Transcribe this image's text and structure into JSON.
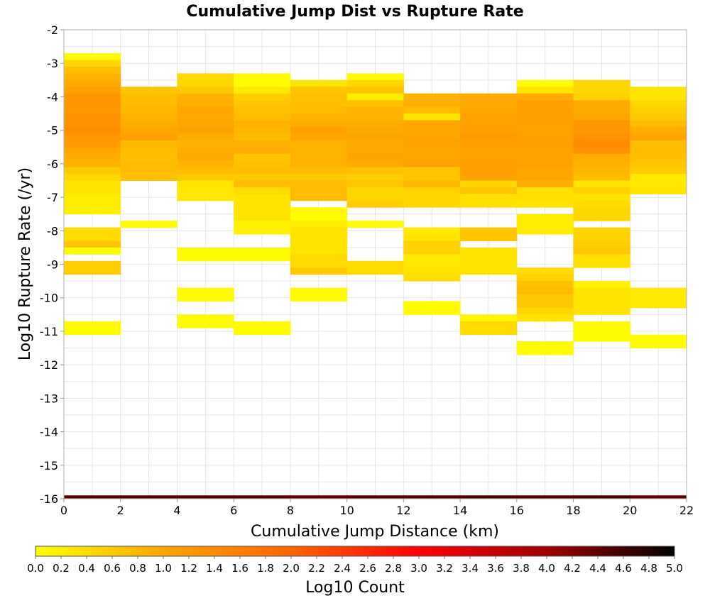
{
  "chart_data": {
    "type": "heatmap",
    "title": "Cumulative Jump Dist vs Rupture Rate",
    "xlabel": "Cumulative Jump Distance (km)",
    "ylabel": "Log10 Rupture Rate (/yr)",
    "xlim": [
      0,
      22
    ],
    "ylim": [
      -16,
      -2
    ],
    "x_bin_width": 2,
    "y_bin_height": 0.2,
    "x_ticks": [
      "0",
      "2",
      "4",
      "6",
      "8",
      "10",
      "12",
      "14",
      "16",
      "18",
      "20",
      "22"
    ],
    "y_ticks": [
      "-2",
      "-3",
      "-4",
      "-5",
      "-6",
      "-7",
      "-8",
      "-9",
      "-10",
      "-11",
      "-12",
      "-13",
      "-14",
      "-15",
      "-16"
    ],
    "colorbar": {
      "label": "Log10 Count",
      "range": [
        0,
        5
      ],
      "ticks": [
        "0.0",
        "0.2",
        "0.4",
        "0.6",
        "0.8",
        "1.0",
        "1.2",
        "1.4",
        "1.6",
        "1.8",
        "2.0",
        "2.2",
        "2.4",
        "2.6",
        "2.8",
        "3.0",
        "3.2",
        "3.4",
        "3.6",
        "3.8",
        "4.0",
        "4.2",
        "4.4",
        "4.6",
        "4.8",
        "5.0"
      ],
      "colormap": "hot_reversed",
      "stops": [
        "#ffff00",
        "#ffa500",
        "#ff6400",
        "#ff0000",
        "#a00000",
        "#000000"
      ]
    },
    "grid": true,
    "columns": [
      {
        "x": 0,
        "cells": [
          [
            -2.8,
            0.05
          ],
          [
            -3.0,
            0.45
          ],
          [
            -3.2,
            0.7
          ],
          [
            -3.4,
            0.85
          ],
          [
            -3.6,
            0.95
          ],
          [
            -3.8,
            1.05
          ],
          [
            -4.0,
            1.25
          ],
          [
            -4.2,
            1.25
          ],
          [
            -4.4,
            1.2
          ],
          [
            -4.6,
            1.3
          ],
          [
            -4.8,
            1.3
          ],
          [
            -5.0,
            1.35
          ],
          [
            -5.2,
            1.2
          ],
          [
            -5.4,
            1.15
          ],
          [
            -5.6,
            1.0
          ],
          [
            -5.8,
            0.9
          ],
          [
            -6.0,
            0.85
          ],
          [
            -6.2,
            0.6
          ],
          [
            -6.4,
            0.45
          ],
          [
            -6.6,
            0.3
          ],
          [
            -6.8,
            0.3
          ],
          [
            -7.0,
            0.2
          ],
          [
            -7.2,
            0.2
          ],
          [
            -7.4,
            0.2
          ],
          [
            -8.0,
            0.4
          ],
          [
            -8.2,
            0.4
          ],
          [
            -8.4,
            0.65
          ],
          [
            -8.6,
            0.05
          ],
          [
            -9.0,
            0.55
          ],
          [
            -9.2,
            0.55
          ],
          [
            -10.8,
            0.05
          ],
          [
            -11.0,
            0.05
          ]
        ]
      },
      {
        "x": 2,
        "cells": [
          [
            -3.8,
            0.65
          ],
          [
            -4.0,
            0.75
          ],
          [
            -4.2,
            0.75
          ],
          [
            -4.4,
            0.8
          ],
          [
            -4.6,
            0.85
          ],
          [
            -4.8,
            0.9
          ],
          [
            -5.0,
            1.0
          ],
          [
            -5.2,
            1.1
          ],
          [
            -5.4,
            0.8
          ],
          [
            -5.6,
            0.75
          ],
          [
            -5.8,
            0.7
          ],
          [
            -6.0,
            0.75
          ],
          [
            -6.2,
            0.75
          ],
          [
            -6.4,
            0.7
          ],
          [
            -7.8,
            0.05
          ]
        ]
      },
      {
        "x": 4,
        "cells": [
          [
            -3.4,
            0.4
          ],
          [
            -3.6,
            0.45
          ],
          [
            -3.8,
            0.6
          ],
          [
            -4.0,
            0.85
          ],
          [
            -4.2,
            0.9
          ],
          [
            -4.4,
            1.0
          ],
          [
            -4.6,
            0.95
          ],
          [
            -4.8,
            1.0
          ],
          [
            -5.0,
            1.05
          ],
          [
            -5.2,
            0.9
          ],
          [
            -5.4,
            0.85
          ],
          [
            -5.6,
            0.9
          ],
          [
            -5.8,
            0.95
          ],
          [
            -6.0,
            0.85
          ],
          [
            -6.2,
            0.75
          ],
          [
            -6.4,
            0.6
          ],
          [
            -6.6,
            0.3
          ],
          [
            -6.8,
            0.25
          ],
          [
            -7.0,
            0.25
          ],
          [
            -8.6,
            0.05
          ],
          [
            -8.8,
            0.05
          ],
          [
            -9.8,
            0.05
          ],
          [
            -10.0,
            0.05
          ],
          [
            -10.6,
            0.05
          ],
          [
            -10.8,
            0.05
          ]
        ]
      },
      {
        "x": 6,
        "cells": [
          [
            -3.4,
            0.05
          ],
          [
            -3.6,
            0.05
          ],
          [
            -3.8,
            0.25
          ],
          [
            -4.0,
            0.55
          ],
          [
            -4.2,
            0.65
          ],
          [
            -4.4,
            0.7
          ],
          [
            -4.6,
            0.75
          ],
          [
            -4.8,
            0.85
          ],
          [
            -5.0,
            0.8
          ],
          [
            -5.2,
            0.75
          ],
          [
            -5.4,
            0.85
          ],
          [
            -5.6,
            0.9
          ],
          [
            -5.8,
            0.65
          ],
          [
            -6.0,
            0.7
          ],
          [
            -6.2,
            0.75
          ],
          [
            -6.4,
            0.6
          ],
          [
            -6.6,
            0.75
          ],
          [
            -6.8,
            0.4
          ],
          [
            -7.0,
            0.3
          ],
          [
            -7.2,
            0.3
          ],
          [
            -7.4,
            0.3
          ],
          [
            -7.6,
            0.3
          ],
          [
            -7.8,
            0.15
          ],
          [
            -8.0,
            0.15
          ],
          [
            -8.6,
            0.05
          ],
          [
            -8.8,
            0.05
          ],
          [
            -10.8,
            0.05
          ],
          [
            -11.0,
            0.05
          ]
        ]
      },
      {
        "x": 8,
        "cells": [
          [
            -3.6,
            0.3
          ],
          [
            -3.8,
            0.65
          ],
          [
            -4.0,
            0.7
          ],
          [
            -4.2,
            0.7
          ],
          [
            -4.4,
            0.75
          ],
          [
            -4.6,
            0.85
          ],
          [
            -4.8,
            0.9
          ],
          [
            -5.0,
            1.1
          ],
          [
            -5.2,
            1.0
          ],
          [
            -5.4,
            0.85
          ],
          [
            -5.6,
            0.85
          ],
          [
            -5.8,
            0.85
          ],
          [
            -6.0,
            0.85
          ],
          [
            -6.2,
            0.75
          ],
          [
            -6.4,
            0.6
          ],
          [
            -6.6,
            0.75
          ],
          [
            -6.8,
            0.75
          ],
          [
            -7.0,
            0.75
          ],
          [
            -7.4,
            0.05
          ],
          [
            -7.6,
            0.05
          ],
          [
            -7.8,
            0.2
          ],
          [
            -8.0,
            0.3
          ],
          [
            -8.2,
            0.3
          ],
          [
            -8.4,
            0.3
          ],
          [
            -8.6,
            0.3
          ],
          [
            -8.8,
            0.4
          ],
          [
            -9.0,
            0.4
          ],
          [
            -9.2,
            0.6
          ],
          [
            -9.8,
            0.05
          ],
          [
            -10.0,
            0.05
          ]
        ]
      },
      {
        "x": 10,
        "cells": [
          [
            -3.4,
            0.05
          ],
          [
            -3.6,
            0.45
          ],
          [
            -3.8,
            0.65
          ],
          [
            -4.0,
            0.2
          ],
          [
            -4.2,
            0.7
          ],
          [
            -4.4,
            0.85
          ],
          [
            -4.6,
            0.85
          ],
          [
            -4.8,
            0.9
          ],
          [
            -5.0,
            0.95
          ],
          [
            -5.2,
            1.0
          ],
          [
            -5.4,
            0.95
          ],
          [
            -5.6,
            0.95
          ],
          [
            -5.8,
            1.0
          ],
          [
            -6.0,
            0.95
          ],
          [
            -6.2,
            0.7
          ],
          [
            -6.4,
            0.55
          ],
          [
            -6.6,
            0.65
          ],
          [
            -6.8,
            0.45
          ],
          [
            -7.0,
            0.45
          ],
          [
            -7.2,
            0.55
          ],
          [
            -7.8,
            0.05
          ],
          [
            -9.0,
            0.4
          ],
          [
            -9.2,
            0.4
          ]
        ]
      },
      {
        "x": 12,
        "cells": [
          [
            -4.0,
            0.85
          ],
          [
            -4.2,
            0.9
          ],
          [
            -4.4,
            0.75
          ],
          [
            -4.6,
            0.3
          ],
          [
            -4.8,
            1.0
          ],
          [
            -5.0,
            1.0
          ],
          [
            -5.2,
            1.0
          ],
          [
            -5.4,
            1.05
          ],
          [
            -5.6,
            1.0
          ],
          [
            -5.8,
            1.0
          ],
          [
            -6.0,
            1.05
          ],
          [
            -6.2,
            0.65
          ],
          [
            -6.4,
            0.65
          ],
          [
            -6.6,
            0.8
          ],
          [
            -6.8,
            0.5
          ],
          [
            -7.0,
            0.45
          ],
          [
            -7.2,
            0.45
          ],
          [
            -8.0,
            0.25
          ],
          [
            -8.2,
            0.3
          ],
          [
            -8.4,
            0.5
          ],
          [
            -8.6,
            0.5
          ],
          [
            -8.8,
            0.25
          ],
          [
            -9.0,
            0.25
          ],
          [
            -9.2,
            0.3
          ],
          [
            -9.4,
            0.35
          ],
          [
            -10.2,
            0.05
          ],
          [
            -10.4,
            0.05
          ]
        ]
      },
      {
        "x": 14,
        "cells": [
          [
            -4.0,
            0.95
          ],
          [
            -4.2,
            0.95
          ],
          [
            -4.4,
            1.0
          ],
          [
            -4.6,
            1.05
          ],
          [
            -4.8,
            1.05
          ],
          [
            -5.0,
            1.1
          ],
          [
            -5.2,
            1.15
          ],
          [
            -5.4,
            1.1
          ],
          [
            -5.6,
            1.05
          ],
          [
            -5.8,
            1.05
          ],
          [
            -6.0,
            1.1
          ],
          [
            -6.2,
            1.1
          ],
          [
            -6.4,
            1.05
          ],
          [
            -6.6,
            0.45
          ],
          [
            -6.8,
            0.65
          ],
          [
            -7.0,
            0.35
          ],
          [
            -7.2,
            0.35
          ],
          [
            -8.0,
            0.65
          ],
          [
            -8.2,
            0.65
          ],
          [
            -8.6,
            0.3
          ],
          [
            -8.8,
            0.3
          ],
          [
            -9.0,
            0.3
          ],
          [
            -9.2,
            0.3
          ],
          [
            -10.6,
            0.1
          ],
          [
            -10.8,
            0.4
          ],
          [
            -11.0,
            0.4
          ]
        ]
      },
      {
        "x": 16,
        "cells": [
          [
            -3.6,
            0.05
          ],
          [
            -3.8,
            0.3
          ],
          [
            -4.0,
            0.95
          ],
          [
            -4.2,
            1.05
          ],
          [
            -4.4,
            1.1
          ],
          [
            -4.6,
            1.1
          ],
          [
            -4.8,
            1.05
          ],
          [
            -5.0,
            1.05
          ],
          [
            -5.2,
            1.05
          ],
          [
            -5.4,
            1.1
          ],
          [
            -5.6,
            1.05
          ],
          [
            -5.8,
            1.05
          ],
          [
            -6.0,
            1.05
          ],
          [
            -6.2,
            1.0
          ],
          [
            -6.4,
            1.0
          ],
          [
            -6.6,
            0.9
          ],
          [
            -6.8,
            0.35
          ],
          [
            -7.0,
            0.35
          ],
          [
            -7.2,
            0.3
          ],
          [
            -7.6,
            0.2
          ],
          [
            -7.8,
            0.2
          ],
          [
            -8.0,
            0.2
          ],
          [
            -9.2,
            0.4
          ],
          [
            -9.4,
            0.5
          ],
          [
            -9.6,
            0.7
          ],
          [
            -9.8,
            0.75
          ],
          [
            -10.0,
            0.6
          ],
          [
            -10.2,
            0.6
          ],
          [
            -10.4,
            0.45
          ],
          [
            -10.6,
            0.3
          ],
          [
            -11.4,
            0.05
          ],
          [
            -11.6,
            0.05
          ]
        ]
      },
      {
        "x": 18,
        "cells": [
          [
            -3.6,
            0.45
          ],
          [
            -3.8,
            0.45
          ],
          [
            -4.0,
            0.5
          ],
          [
            -4.2,
            0.95
          ],
          [
            -4.4,
            0.95
          ],
          [
            -4.6,
            1.0
          ],
          [
            -4.8,
            1.2
          ],
          [
            -5.0,
            1.25
          ],
          [
            -5.2,
            1.3
          ],
          [
            -5.4,
            1.4
          ],
          [
            -5.6,
            1.3
          ],
          [
            -5.8,
            0.9
          ],
          [
            -6.0,
            0.85
          ],
          [
            -6.2,
            0.8
          ],
          [
            -6.4,
            0.75
          ],
          [
            -6.6,
            0.3
          ],
          [
            -6.8,
            0.5
          ],
          [
            -7.0,
            0.3
          ],
          [
            -7.2,
            0.4
          ],
          [
            -7.4,
            0.45
          ],
          [
            -7.6,
            0.45
          ],
          [
            -8.0,
            0.5
          ],
          [
            -8.2,
            0.5
          ],
          [
            -8.4,
            0.55
          ],
          [
            -8.6,
            0.6
          ],
          [
            -8.8,
            0.35
          ],
          [
            -9.0,
            0.35
          ],
          [
            -9.6,
            0.15
          ],
          [
            -9.8,
            0.3
          ],
          [
            -10.0,
            0.3
          ],
          [
            -10.2,
            0.3
          ],
          [
            -10.4,
            0.3
          ],
          [
            -10.8,
            0.05
          ],
          [
            -11.0,
            0.05
          ],
          [
            -11.2,
            0.05
          ]
        ]
      },
      {
        "x": 20,
        "cells": [
          [
            -3.8,
            0.3
          ],
          [
            -4.0,
            0.3
          ],
          [
            -4.2,
            0.45
          ],
          [
            -4.4,
            0.55
          ],
          [
            -4.6,
            0.6
          ],
          [
            -4.8,
            0.75
          ],
          [
            -5.0,
            0.9
          ],
          [
            -5.2,
            1.0
          ],
          [
            -5.4,
            0.75
          ],
          [
            -5.6,
            0.75
          ],
          [
            -5.8,
            0.7
          ],
          [
            -6.0,
            0.65
          ],
          [
            -6.2,
            0.55
          ],
          [
            -6.4,
            0.25
          ],
          [
            -6.6,
            0.25
          ],
          [
            -6.8,
            0.3
          ],
          [
            -9.8,
            0.25
          ],
          [
            -10.0,
            0.25
          ],
          [
            -10.2,
            0.25
          ],
          [
            -11.2,
            0.05
          ],
          [
            -11.4,
            0.05
          ]
        ]
      }
    ],
    "bottom_row": {
      "y": -16.0,
      "values": [
        4.45,
        4.5,
        4.5,
        4.45,
        4.4,
        4.45,
        4.5,
        4.55,
        4.5,
        4.55,
        4.4
      ],
      "note": ""
    }
  }
}
